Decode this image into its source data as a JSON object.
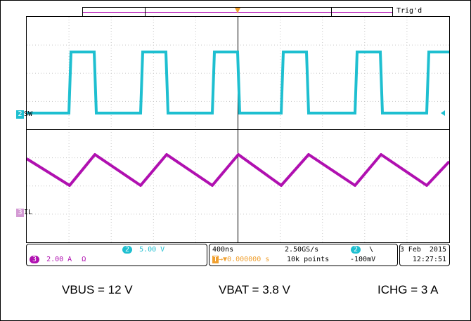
{
  "scope": {
    "trigger_status": "Trig'd",
    "trigger_marker": "T",
    "colors": {
      "ch2": "#1ebfd0",
      "ch3": "#b010b0",
      "trigger": "#f0a030",
      "grid": "#c8c8c8"
    },
    "channels": [
      {
        "id": "2",
        "label": "SW"
      },
      {
        "id": "3",
        "label": "IL"
      }
    ],
    "readouts": {
      "ch2_badge": "2",
      "ch2_scale": "5.00 V",
      "ch3_badge": "3",
      "ch3_scale": "2.00 A",
      "ch3_suffix": "Ω",
      "timebase": "400ns",
      "sample_rate": "2.50GS/s",
      "trig_pos": "0.000000 s",
      "record_length": "10k points",
      "trig_ch": "2",
      "trig_slope": "\\",
      "trig_level": "-100mV",
      "date": "3 Feb  2015",
      "time": "12:27:51"
    }
  },
  "captions": {
    "vbus": "VBUS = 12 V",
    "vbat": "VBAT = 3.8 V",
    "ichg": "ICHG = 3 A"
  }
}
